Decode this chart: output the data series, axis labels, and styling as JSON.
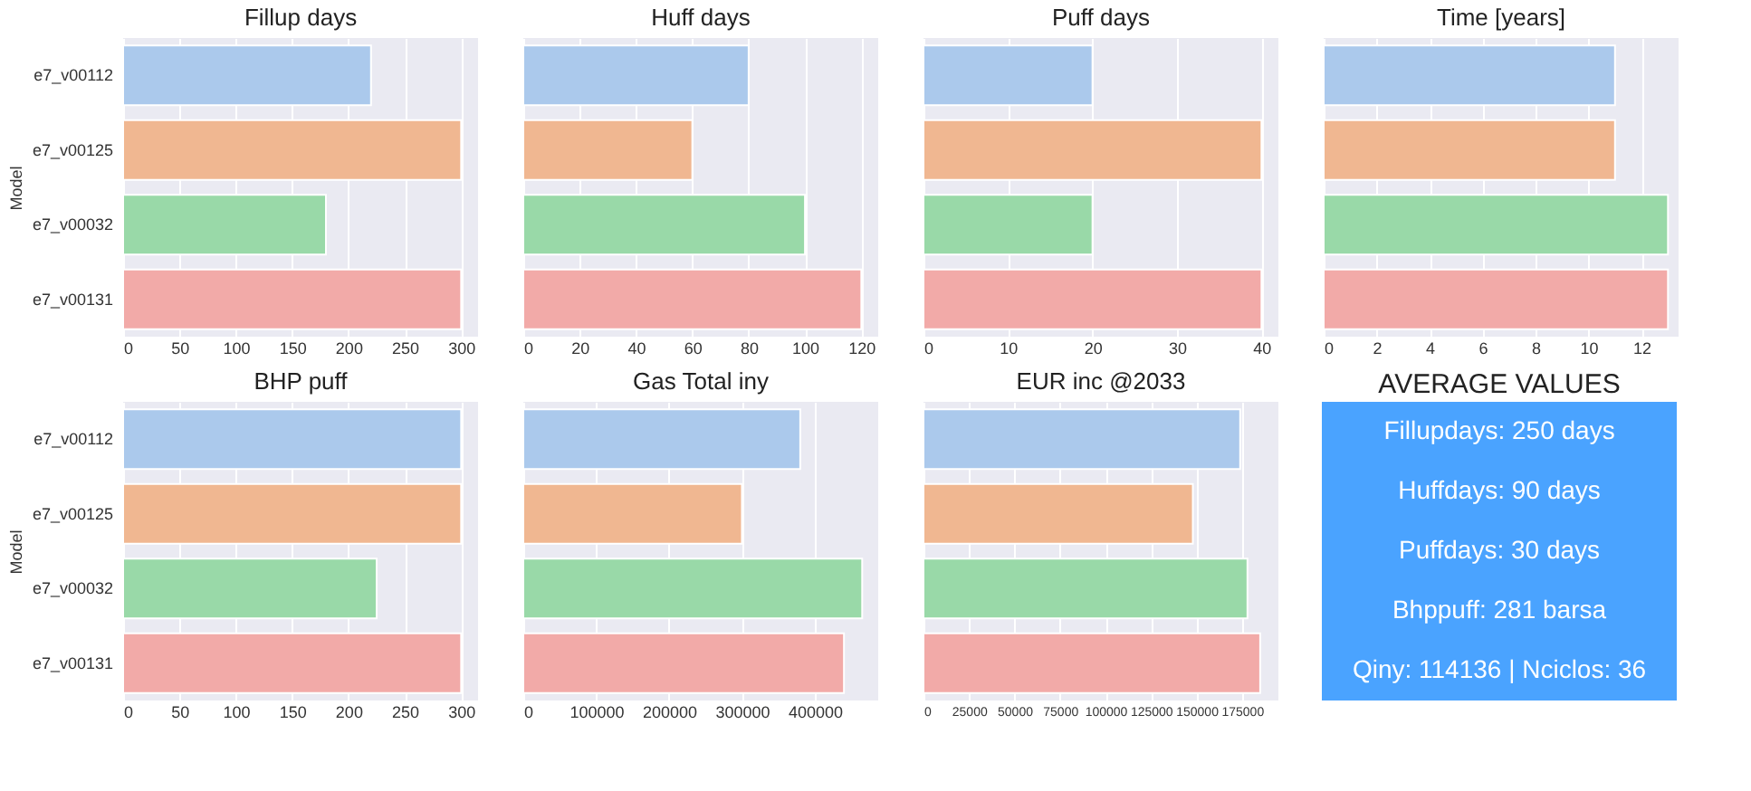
{
  "chart_data": [
    {
      "type": "bar",
      "orientation": "horizontal",
      "title": "Fillup days",
      "ylabel": "Model",
      "categories": [
        "e7_v00112",
        "e7_v00125",
        "e7_v00032",
        "e7_v00131"
      ],
      "colors": [
        "#abc9ec",
        "#f0b791",
        "#99d9a8",
        "#f2aaa8"
      ],
      "values": [
        220,
        300,
        180,
        300
      ],
      "xlim": [
        0,
        315
      ],
      "xticks": [
        0,
        50,
        100,
        150,
        200,
        250,
        300
      ],
      "grid": "x"
    },
    {
      "type": "bar",
      "orientation": "horizontal",
      "title": "Huff days",
      "categories": [
        "e7_v00112",
        "e7_v00125",
        "e7_v00032",
        "e7_v00131"
      ],
      "colors": [
        "#abc9ec",
        "#f0b791",
        "#99d9a8",
        "#f2aaa8"
      ],
      "values": [
        80,
        60,
        100,
        120
      ],
      "xlim": [
        0,
        126
      ],
      "xticks": [
        0,
        20,
        40,
        60,
        80,
        100,
        120
      ],
      "grid": "x",
      "tick_labels": "x"
    },
    {
      "type": "bar",
      "orientation": "horizontal",
      "title": "Puff days",
      "categories": [
        "e7_v00112",
        "e7_v00125",
        "e7_v00032",
        "e7_v00131"
      ],
      "colors": [
        "#abc9ec",
        "#f0b791",
        "#99d9a8",
        "#f2aaa8"
      ],
      "values": [
        20,
        40,
        20,
        40
      ],
      "xlim": [
        0,
        42
      ],
      "xticks": [
        0,
        10,
        20,
        30,
        40
      ],
      "grid": "x",
      "tick_labels": "x"
    },
    {
      "type": "bar",
      "orientation": "horizontal",
      "title": "Time [years]",
      "categories": [
        "e7_v00112",
        "e7_v00125",
        "e7_v00032",
        "e7_v00131"
      ],
      "colors": [
        "#abc9ec",
        "#f0b791",
        "#99d9a8",
        "#f2aaa8"
      ],
      "values": [
        11,
        11,
        13,
        13
      ],
      "xlim": [
        0,
        13.4
      ],
      "xticks": [
        0,
        2,
        4,
        6,
        8,
        10,
        12
      ],
      "grid": "x",
      "tick_labels": "x"
    },
    {
      "type": "bar",
      "orientation": "horizontal",
      "title": "BHP puff",
      "ylabel": "Model",
      "categories": [
        "e7_v00112",
        "e7_v00125",
        "e7_v00032",
        "e7_v00131"
      ],
      "colors": [
        "#abc9ec",
        "#f0b791",
        "#99d9a8",
        "#f2aaa8"
      ],
      "values": [
        300,
        300,
        225,
        300
      ],
      "xlim": [
        0,
        315
      ],
      "xticks": [
        0,
        50,
        100,
        150,
        200,
        250,
        300
      ],
      "grid": "x"
    },
    {
      "type": "bar",
      "orientation": "horizontal",
      "title": "Gas Total iny",
      "categories": [
        "e7_v00112",
        "e7_v00125",
        "e7_v00032",
        "e7_v00131"
      ],
      "colors": [
        "#abc9ec",
        "#f0b791",
        "#99d9a8",
        "#f2aaa8"
      ],
      "values": [
        380000,
        300000,
        465000,
        440000
      ],
      "xlim": [
        0,
        487000
      ],
      "xticks": [
        0,
        100000,
        200000,
        300000,
        400000
      ],
      "grid": "x",
      "tick_labels": "x"
    },
    {
      "type": "bar",
      "orientation": "horizontal",
      "title": "EUR inc @2033",
      "categories": [
        "e7_v00112",
        "e7_v00125",
        "e7_v00032",
        "e7_v00131"
      ],
      "colors": [
        "#abc9ec",
        "#f0b791",
        "#99d9a8",
        "#f2aaa8"
      ],
      "values": [
        174000,
        148000,
        178000,
        185000
      ],
      "xlim": [
        0,
        195000
      ],
      "xticks": [
        0,
        25000,
        50000,
        75000,
        100000,
        125000,
        150000,
        175000
      ],
      "grid": "x",
      "tick_labels": "x"
    },
    {
      "type": "other",
      "title": "AVERAGE VALUES",
      "annotations": [
        "Fillupdays: 250 days",
        "Huffdays: 90 days",
        "Puffdays: 30 days",
        "Bhppuff: 281 barsa",
        "Qiny: 114136 |   Nciclos: 36"
      ]
    }
  ]
}
